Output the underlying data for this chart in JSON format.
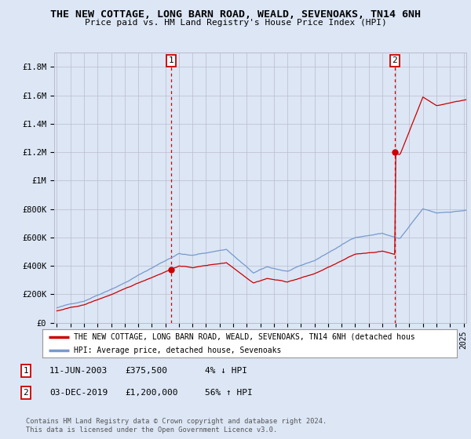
{
  "title": "THE NEW COTTAGE, LONG BARN ROAD, WEALD, SEVENOAKS, TN14 6NH",
  "subtitle": "Price paid vs. HM Land Registry's House Price Index (HPI)",
  "ylim": [
    0,
    1900000
  ],
  "yticks": [
    0,
    200000,
    400000,
    600000,
    800000,
    1000000,
    1200000,
    1400000,
    1600000,
    1800000
  ],
  "ytick_labels": [
    "£0",
    "£200K",
    "£400K",
    "£600K",
    "£800K",
    "£1M",
    "£1.2M",
    "£1.4M",
    "£1.6M",
    "£1.8M"
  ],
  "x_start_year": 1995,
  "x_end_year": 2025,
  "background_color": "#dce6f5",
  "plot_bg_color": "#dce6f5",
  "grid_color": "#bbbbcc",
  "sale1_year": 2003.44,
  "sale1_price": 375500,
  "sale2_year": 2019.92,
  "sale2_price": 1200000,
  "price_line_color": "#cc0000",
  "hpi_line_color": "#7799cc",
  "legend_price_label": "THE NEW COTTAGE, LONG BARN ROAD, WEALD, SEVENOAKS, TN14 6NH (detached hous",
  "legend_hpi_label": "HPI: Average price, detached house, Sevenoaks",
  "footer_text": "Contains HM Land Registry data © Crown copyright and database right 2024.\nThis data is licensed under the Open Government Licence v3.0."
}
